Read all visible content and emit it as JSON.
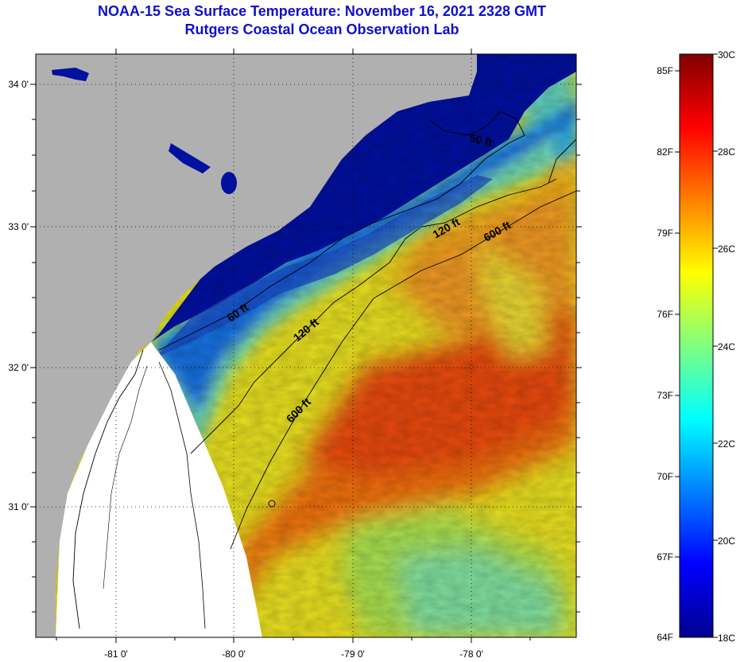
{
  "title": {
    "line1": "NOAA-15 Sea Surface Temperature:  November 16, 2021 2328 GMT",
    "line2": "Rutgers Coastal Ocean Observation Lab"
  },
  "map": {
    "lat_ticks": [
      "34 0'",
      "33 0'",
      "32 0'",
      "31 0'"
    ],
    "lon_ticks": [
      "-81 0'",
      "-80 0'",
      "-79 0'",
      "-78 0'"
    ],
    "colors": {
      "land": "#b0b0b0",
      "nodata": "#ffffff",
      "frame": "#000000"
    },
    "contours": [
      {
        "name": "50 ft",
        "label": "50 ft"
      },
      {
        "name": "60 ft",
        "label": "60 ft"
      },
      {
        "name": "120 ft",
        "label": "120 ft"
      },
      {
        "name": "120 ft",
        "label": "120 ft"
      },
      {
        "name": "600 ft",
        "label": "600 ft"
      },
      {
        "name": "600 ft",
        "label": "600 ft"
      }
    ]
  },
  "colorbar": {
    "fahrenheit": [
      "85F",
      "82F",
      "79F",
      "76F",
      "73F",
      "70F",
      "67F",
      "64F"
    ],
    "celsius": [
      "30C",
      "28C",
      "26C",
      "24C",
      "22C",
      "20C",
      "18C"
    ],
    "range_c": [
      18,
      30
    ],
    "colormap": "jet"
  }
}
